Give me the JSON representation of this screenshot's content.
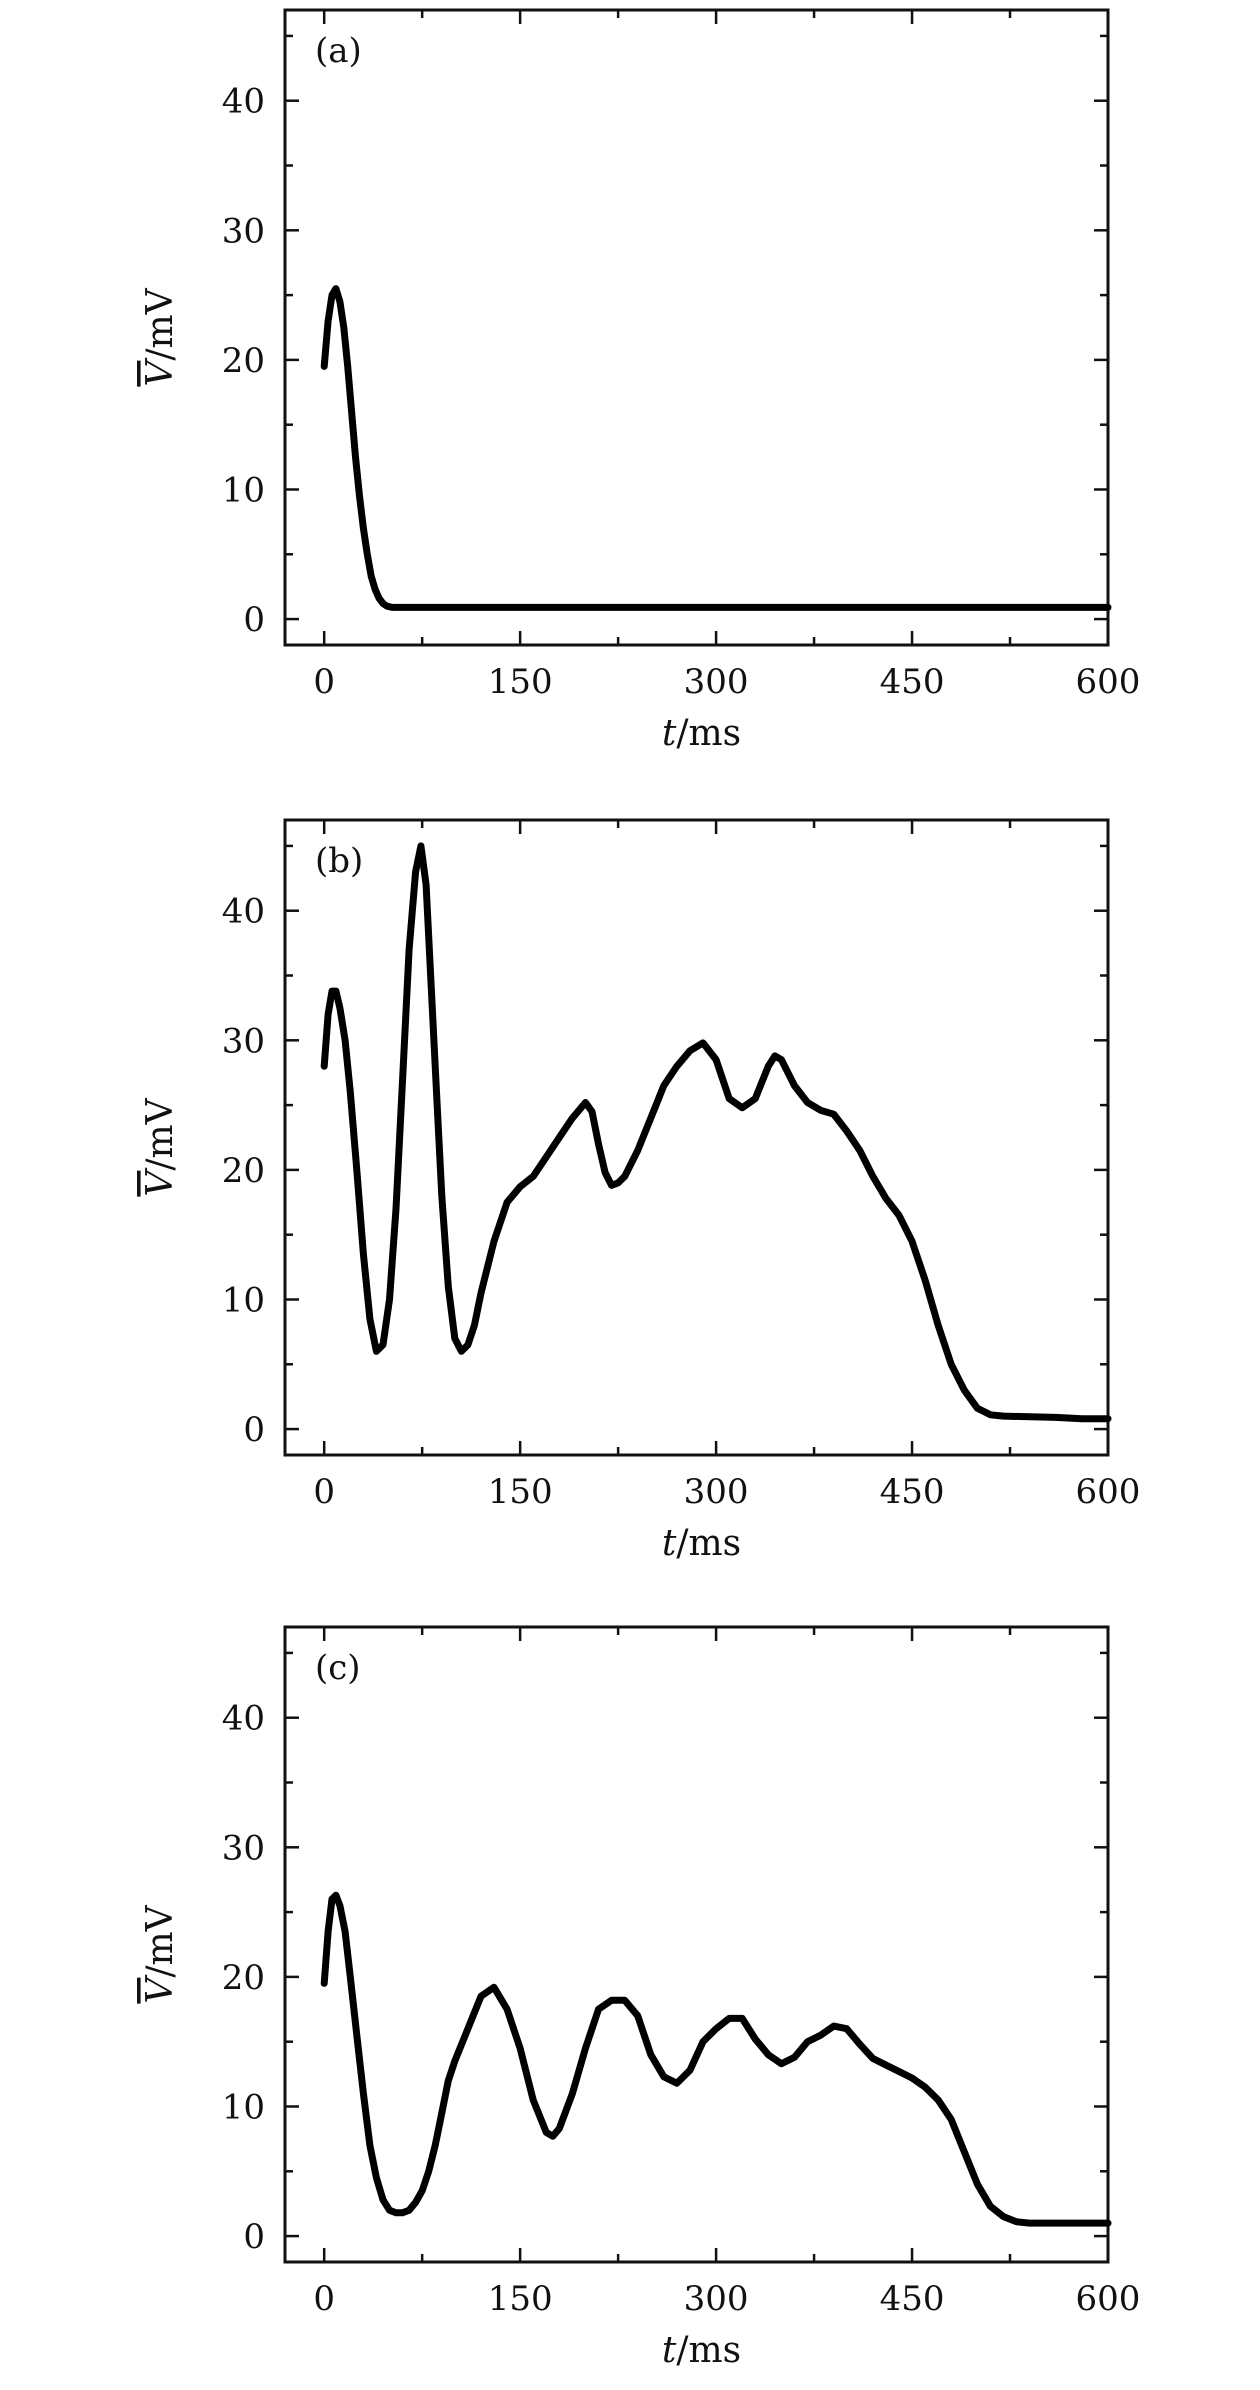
{
  "chart_data": [
    {
      "type": "line",
      "panel_label": "(a)",
      "xlabel_var": "t",
      "xlabel_unit": "/ms",
      "ylabel_var": "V",
      "ylabel_unit": "/mV",
      "ylabel_overline": true,
      "xlim": [
        -30,
        600
      ],
      "ylim": [
        -2,
        47
      ],
      "xticks": [
        "0",
        "150",
        "300",
        "450",
        "600"
      ],
      "yticks": [
        "0",
        "10",
        "20",
        "30",
        "40"
      ],
      "grid": false,
      "series": [
        {
          "x": [
            0,
            3,
            6,
            9,
            12,
            15,
            18,
            21,
            24,
            27,
            30,
            33,
            36,
            39,
            42,
            45,
            48,
            52,
            58,
            70,
            100,
            200,
            300,
            400,
            500,
            600
          ],
          "y": [
            19.5,
            23,
            25,
            25.5,
            24.5,
            22.5,
            19.5,
            16,
            12.5,
            9.5,
            7,
            5,
            3.3,
            2.3,
            1.6,
            1.2,
            1.0,
            0.9,
            0.9,
            0.9,
            0.9,
            0.9,
            0.9,
            0.9,
            0.9,
            0.9
          ]
        }
      ]
    },
    {
      "type": "line",
      "panel_label": "(b)",
      "xlabel_var": "t",
      "xlabel_unit": "/ms",
      "ylabel_var": "V",
      "ylabel_unit": "/mV",
      "ylabel_overline": true,
      "xlim": [
        -30,
        600
      ],
      "ylim": [
        -2,
        47
      ],
      "xticks": [
        "0",
        "150",
        "300",
        "450",
        "600"
      ],
      "yticks": [
        "0",
        "10",
        "20",
        "30",
        "40"
      ],
      "grid": false,
      "series": [
        {
          "x": [
            0,
            3,
            6,
            9,
            12,
            16,
            20,
            25,
            30,
            35,
            40,
            45,
            50,
            55,
            60,
            65,
            70,
            74,
            78,
            82,
            86,
            90,
            95,
            100,
            105,
            110,
            115,
            120,
            130,
            140,
            150,
            160,
            170,
            180,
            190,
            200,
            205,
            210,
            215,
            220,
            225,
            230,
            235,
            240,
            250,
            260,
            270,
            280,
            290,
            300,
            310,
            320,
            330,
            340,
            345,
            350,
            360,
            370,
            380,
            390,
            400,
            410,
            420,
            430,
            440,
            450,
            460,
            470,
            480,
            490,
            500,
            510,
            520,
            540,
            560,
            580,
            600
          ],
          "y": [
            28,
            32,
            33.8,
            33.8,
            32.5,
            30,
            26,
            20,
            13.5,
            8.5,
            6,
            6.5,
            10,
            17,
            27,
            37,
            43,
            45,
            42,
            34,
            26,
            18,
            11,
            7,
            6,
            6.5,
            8,
            10.5,
            14.5,
            17.5,
            18.7,
            19.5,
            21,
            22.5,
            24,
            25.2,
            24.5,
            22,
            19.8,
            18.8,
            19,
            19.5,
            20.5,
            21.5,
            24,
            26.5,
            28,
            29.2,
            29.8,
            28.5,
            25.5,
            24.8,
            25.5,
            28,
            28.8,
            28.5,
            26.5,
            25.2,
            24.6,
            24.3,
            23,
            21.5,
            19.5,
            17.8,
            16.5,
            14.5,
            11.5,
            8,
            5,
            3,
            1.6,
            1.1,
            1.0,
            0.95,
            0.9,
            0.8,
            0.8
          ]
        }
      ]
    },
    {
      "type": "line",
      "panel_label": "(c)",
      "xlabel_var": "t",
      "xlabel_unit": "/ms",
      "ylabel_var": "V",
      "ylabel_unit": "/mV",
      "ylabel_overline": true,
      "xlim": [
        -30,
        600
      ],
      "ylim": [
        -2,
        47
      ],
      "xticks": [
        "0",
        "150",
        "300",
        "450",
        "600"
      ],
      "yticks": [
        "0",
        "10",
        "20",
        "30",
        "40"
      ],
      "grid": false,
      "series": [
        {
          "x": [
            0,
            3,
            6,
            9,
            12,
            16,
            20,
            25,
            30,
            35,
            40,
            45,
            50,
            55,
            60,
            65,
            70,
            75,
            80,
            85,
            90,
            95,
            100,
            110,
            120,
            130,
            140,
            150,
            160,
            170,
            175,
            180,
            190,
            200,
            210,
            220,
            230,
            240,
            250,
            260,
            270,
            280,
            290,
            300,
            310,
            320,
            330,
            340,
            350,
            360,
            370,
            380,
            390,
            400,
            410,
            420,
            430,
            440,
            450,
            460,
            470,
            480,
            490,
            500,
            510,
            520,
            530,
            540,
            560,
            580,
            600
          ],
          "y": [
            19.5,
            23.5,
            26,
            26.3,
            25.5,
            23.5,
            20,
            15.5,
            11,
            7,
            4.5,
            2.8,
            2.0,
            1.8,
            1.8,
            2.0,
            2.6,
            3.5,
            5,
            7,
            9.5,
            12,
            13.5,
            16,
            18.5,
            19.2,
            17.5,
            14.5,
            10.5,
            8,
            7.7,
            8.3,
            11,
            14.5,
            17.5,
            18.2,
            18.2,
            17,
            14,
            12.3,
            11.8,
            12.8,
            15,
            16,
            16.8,
            16.8,
            15.2,
            14,
            13.3,
            13.8,
            15,
            15.5,
            16.2,
            16,
            14.8,
            13.7,
            13.2,
            12.7,
            12.2,
            11.5,
            10.5,
            9,
            6.5,
            4,
            2.3,
            1.5,
            1.1,
            1.0,
            1.0,
            1.0,
            1.0
          ]
        }
      ]
    }
  ]
}
